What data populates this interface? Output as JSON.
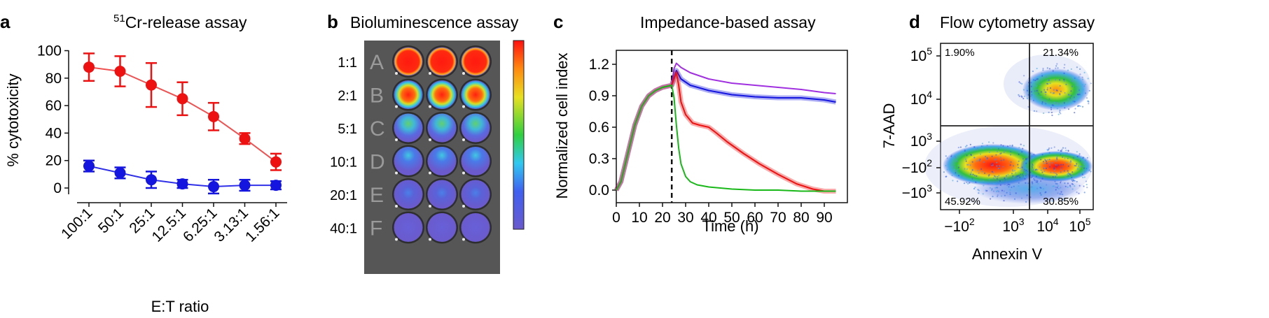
{
  "colors": {
    "red": "#ee1111",
    "blue": "#1515e0",
    "green": "#18b818",
    "purple": "#a030e0",
    "line_red": "#f05050",
    "line_blue": "#3030e8"
  },
  "panels": {
    "a": {
      "letter": "a",
      "title_sup": "51",
      "title_main": "Cr-release assay"
    },
    "b": {
      "letter": "b",
      "title": "Bioluminescence assay"
    },
    "c": {
      "letter": "c",
      "title": "Impedance-based assay"
    },
    "d": {
      "letter": "d",
      "title": "Flow cytometry assay"
    }
  },
  "chart_data": [
    {
      "id": "a",
      "type": "line",
      "title": "51Cr-release assay",
      "xlabel": "E:T ratio",
      "ylabel": "% cytotoxicity",
      "categories": [
        "100:1",
        "50:1",
        "25:1",
        "12.5:1",
        "6.25:1",
        "3.13:1",
        "1.56:1"
      ],
      "ylim": [
        -5,
        100
      ],
      "yticks": [
        "0",
        "20",
        "40",
        "60",
        "80",
        "100"
      ],
      "series": [
        {
          "name": "red",
          "color": "#ee1111",
          "values": [
            88,
            85,
            75,
            65,
            52,
            36,
            19
          ],
          "errors": [
            10,
            11,
            16,
            12,
            10,
            4,
            6
          ]
        },
        {
          "name": "blue",
          "color": "#1515e0",
          "values": [
            16,
            11,
            6,
            3,
            1,
            2,
            2
          ],
          "errors": [
            4,
            4,
            6,
            3,
            5,
            4,
            3
          ]
        }
      ]
    },
    {
      "id": "b",
      "type": "heatmap",
      "title": "Bioluminescence assay",
      "row_labels": [
        "1:1",
        "2:1",
        "5:1",
        "10:1",
        "20:1",
        "40:1"
      ],
      "well_letters": [
        "A",
        "B",
        "C",
        "D",
        "E",
        "F"
      ],
      "intensity": [
        [
          1.0,
          1.0,
          1.0
        ],
        [
          0.88,
          0.84,
          0.86
        ],
        [
          0.38,
          0.45,
          0.36
        ],
        [
          0.24,
          0.28,
          0.3
        ],
        [
          0.16,
          0.12,
          0.12
        ],
        [
          0.05,
          0.05,
          0.05
        ]
      ],
      "colorbar": "blue-to-red"
    },
    {
      "id": "c",
      "type": "line",
      "title": "Impedance-based assay",
      "xlabel": "Time (h)",
      "ylabel": "Normalized cell index",
      "xlim": [
        0,
        96
      ],
      "ylim": [
        -0.1,
        1.3
      ],
      "xticks": [
        "0",
        "10",
        "20",
        "30",
        "40",
        "50",
        "60",
        "70",
        "80",
        "90"
      ],
      "yticks": [
        "0.0",
        "0.3",
        "0.6",
        "0.9",
        "1.2"
      ],
      "vline_x": 24,
      "series": [
        {
          "name": "purple",
          "color": "#a030e0",
          "x": [
            0,
            2,
            5,
            8,
            11,
            14,
            17,
            20,
            22,
            24,
            25,
            26,
            28,
            32,
            40,
            50,
            60,
            70,
            80,
            90,
            95
          ],
          "y": [
            0,
            0.08,
            0.35,
            0.62,
            0.8,
            0.9,
            0.95,
            0.98,
            0.99,
            1.0,
            1.16,
            1.21,
            1.17,
            1.12,
            1.06,
            1.02,
            1.0,
            0.98,
            0.96,
            0.93,
            0.92
          ]
        },
        {
          "name": "blue",
          "color": "#1515e0",
          "x": [
            0,
            2,
            5,
            8,
            11,
            14,
            17,
            20,
            22,
            24,
            25,
            26,
            28,
            32,
            40,
            50,
            60,
            70,
            80,
            90,
            95
          ],
          "y": [
            0,
            0.08,
            0.35,
            0.62,
            0.8,
            0.9,
            0.95,
            0.98,
            0.99,
            1.0,
            1.07,
            1.14,
            1.06,
            1.0,
            0.95,
            0.91,
            0.89,
            0.88,
            0.88,
            0.86,
            0.84
          ]
        },
        {
          "name": "red",
          "color": "#ee1111",
          "x": [
            0,
            2,
            5,
            8,
            11,
            14,
            17,
            20,
            22,
            24,
            25,
            26,
            27,
            28,
            30,
            33,
            36,
            40,
            43,
            48,
            55,
            62,
            70,
            78,
            85,
            90,
            95
          ],
          "y": [
            0,
            0.08,
            0.35,
            0.62,
            0.8,
            0.9,
            0.95,
            0.98,
            0.99,
            1.0,
            1.06,
            1.12,
            1.0,
            0.84,
            0.72,
            0.64,
            0.62,
            0.6,
            0.55,
            0.46,
            0.35,
            0.25,
            0.15,
            0.06,
            0.01,
            -0.01,
            -0.01
          ]
        },
        {
          "name": "green",
          "color": "#18b818",
          "x": [
            0,
            2,
            5,
            8,
            11,
            14,
            17,
            20,
            22,
            24,
            25,
            26,
            27,
            28,
            30,
            32,
            35,
            40,
            50,
            60,
            70,
            80,
            90,
            95
          ],
          "y": [
            0,
            0.08,
            0.35,
            0.62,
            0.8,
            0.9,
            0.95,
            0.98,
            0.99,
            1.0,
            0.88,
            0.62,
            0.4,
            0.25,
            0.13,
            0.08,
            0.05,
            0.03,
            0.01,
            0.0,
            0.0,
            -0.01,
            -0.01,
            -0.01
          ]
        }
      ]
    },
    {
      "id": "d",
      "type": "scatter",
      "title": "Flow cytometry assay",
      "xlabel": "Annexin  V",
      "ylabel": "7-AAD",
      "xtick_labels": [
        {
          "base": "−10",
          "exp": "2"
        },
        {
          "base": "10",
          "exp": "3"
        },
        {
          "base": "10",
          "exp": "4"
        },
        {
          "base": "10",
          "exp": "5"
        }
      ],
      "ytick_labels": [
        {
          "base": "10",
          "exp": "5"
        },
        {
          "base": "10",
          "exp": "4"
        },
        {
          "base": "10",
          "exp": "3"
        },
        {
          "base": "−10",
          "exp": "2"
        },
        {
          "base": "−10",
          "exp": "3"
        }
      ],
      "quadrants": {
        "upper_left": "1.90%",
        "upper_right": "21.34%",
        "lower_left": "45.92%",
        "lower_right": "30.85%"
      }
    }
  ]
}
